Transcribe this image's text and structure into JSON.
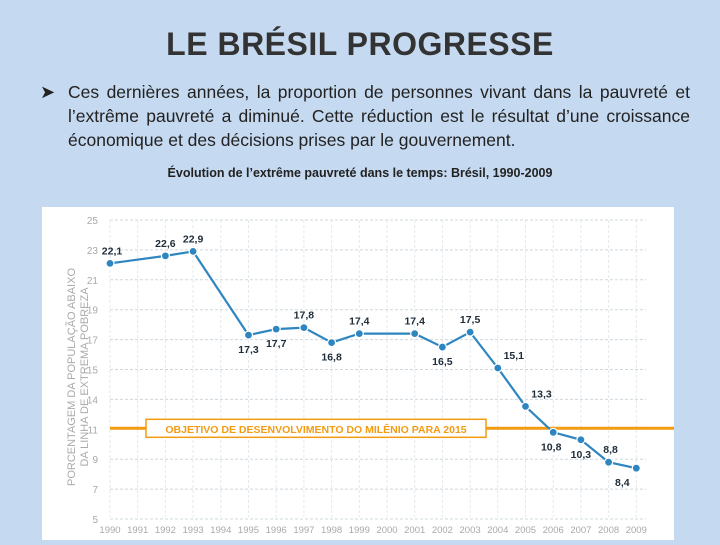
{
  "slide": {
    "title": "LE BRÉSIL PROGRESSE",
    "bullet_text": "Ces dernières années, la proportion de personnes vivant dans la pauvreté et l’extrême pauvreté a diminué. Cette réduction est le résultat d’une croissance économique et des décisions prises par le gouvernement.",
    "chart_caption": "Évolution de l’extrême pauvreté dans le temps: Brésil, 1990-2009"
  },
  "chart_data": {
    "type": "line",
    "title": "Évolution de l’extrême pauvreté dans le temps: Brésil, 1990-2009",
    "ylabel": "PORCENTAGEM DA POPULAÇÃO ABAIXO DA LINHA DE EXTREMA POBREZA",
    "xlabel": "",
    "x": [
      "1990",
      "1991",
      "1992",
      "1993",
      "1994",
      "1995",
      "1996",
      "1997",
      "1998",
      "1999",
      "2000",
      "2001",
      "2002",
      "2003",
      "2004",
      "2005",
      "2006",
      "2007",
      "2008",
      "2009"
    ],
    "y_ticks": [
      "25",
      "23",
      "21",
      "19",
      "17",
      "15",
      "14",
      "11",
      "9",
      "7",
      "5"
    ],
    "ylim": [
      5,
      25
    ],
    "series": [
      {
        "name": "Extrema pobreza",
        "color": "#2e86c1",
        "points": [
          {
            "x": 1990,
            "y": 22.1,
            "label": "22,1"
          },
          {
            "x": 1992,
            "y": 22.6,
            "label": "22,6"
          },
          {
            "x": 1993,
            "y": 22.9,
            "label": "22,9"
          },
          {
            "x": 1995,
            "y": 17.3,
            "label": "17,3"
          },
          {
            "x": 1996,
            "y": 17.7,
            "label": "17,7"
          },
          {
            "x": 1997,
            "y": 17.8,
            "label": "17,8"
          },
          {
            "x": 1998,
            "y": 16.8,
            "label": "16,8"
          },
          {
            "x": 1999,
            "y": 17.4,
            "label": "17,4"
          },
          {
            "x": 2001,
            "y": 17.4,
            "label": "17,4"
          },
          {
            "x": 2002,
            "y": 16.5,
            "label": "16,5"
          },
          {
            "x": 2003,
            "y": 17.5,
            "label": "17,5"
          },
          {
            "x": 2004,
            "y": 15.1,
            "label": "15,1"
          },
          {
            "x": 2005,
            "y": 13.3,
            "label": "13,3"
          },
          {
            "x": 2006,
            "y": 10.8,
            "label": "10,8"
          },
          {
            "x": 2007,
            "y": 10.3,
            "label": "10,3"
          },
          {
            "x": 2008,
            "y": 8.8,
            "label": "8,8"
          },
          {
            "x": 2009,
            "y": 8.4,
            "label": "8,4"
          }
        ]
      }
    ],
    "reference_line": {
      "y": 11.1,
      "label": "OBJETIVO DE DESENVOLVIMENTO DO MILÊNIO PARA 2015",
      "color": "#f39c12"
    },
    "grid": true
  }
}
